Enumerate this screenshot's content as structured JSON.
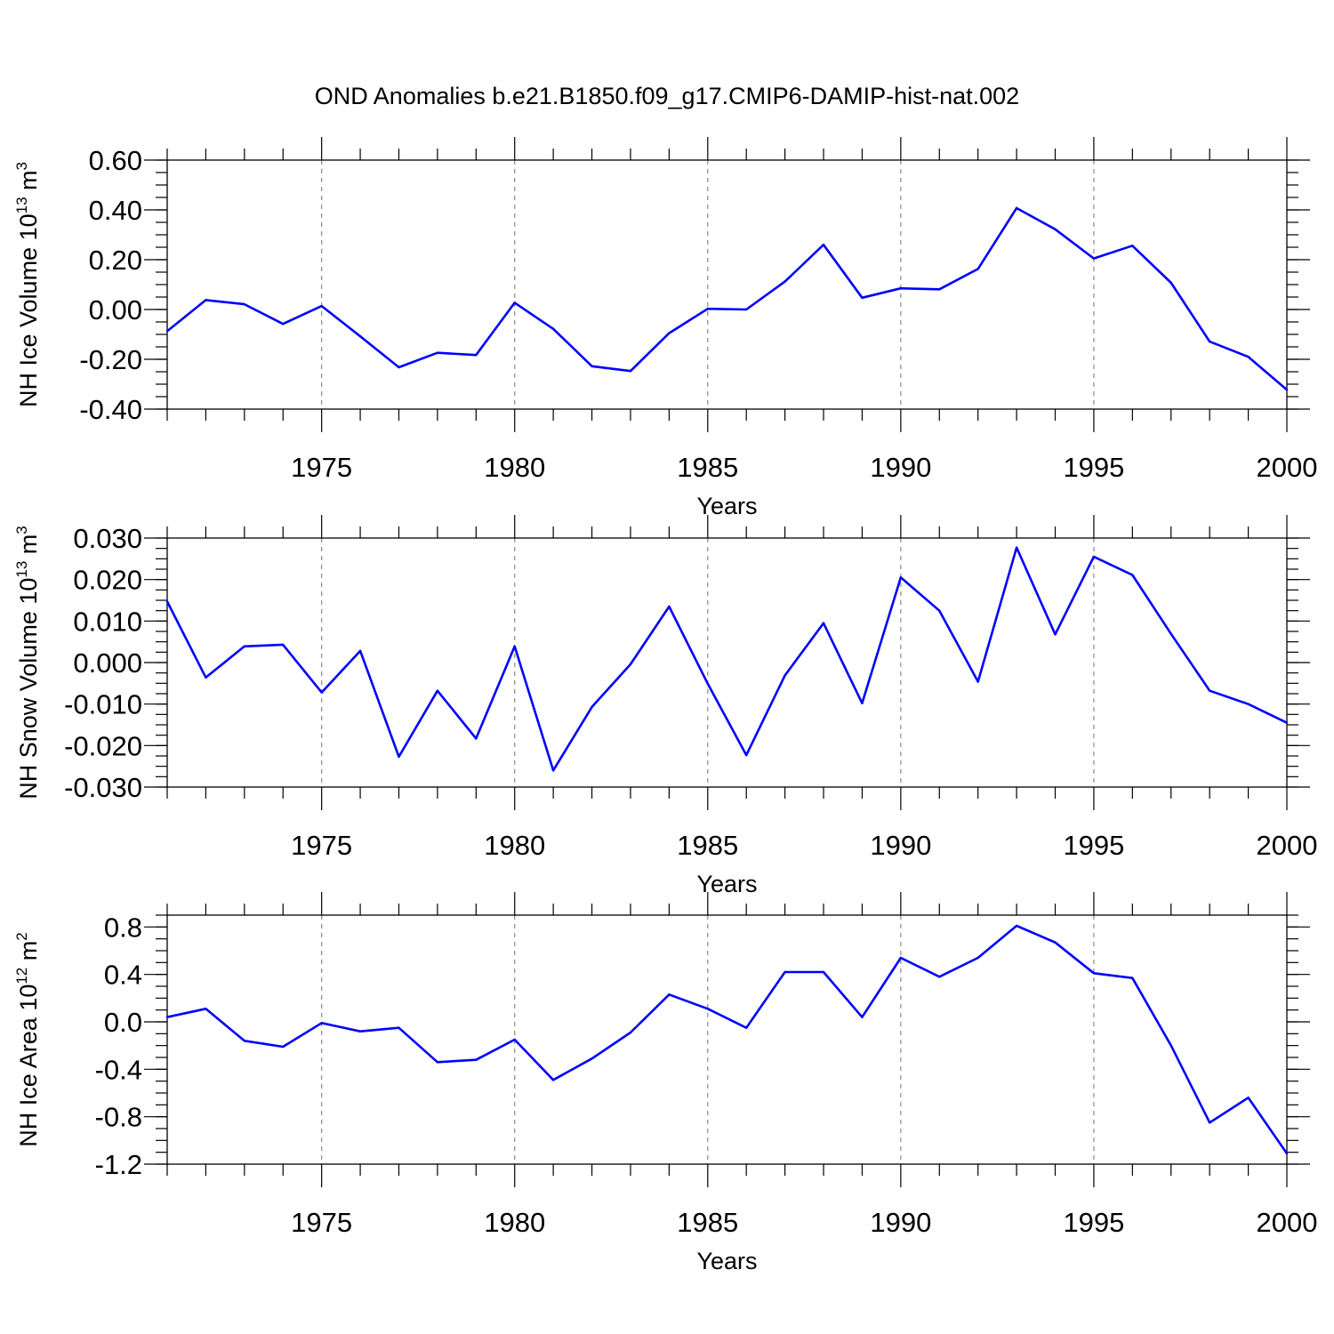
{
  "title": "OND Anomalies b.e21.B1850.f09_g17.CMIP6-DAMIP-hist-nat.002",
  "chart_data": [
    {
      "type": "line",
      "name": "ice-volume",
      "ylabel": {
        "base": "NH Ice Volume 10",
        "exp": "13",
        "unit": " m",
        "unit_exp": "3"
      },
      "xlabel": "Years",
      "xlim": [
        1971,
        2000
      ],
      "ylim": [
        -0.4,
        0.6
      ],
      "grid": "vertical dashed at major x ticks",
      "yticks": [
        -0.4,
        -0.2,
        0.0,
        0.2,
        0.4,
        0.6
      ],
      "ytick_labels": [
        "-0.40",
        "-0.20",
        "0.00",
        "0.20",
        "0.40",
        "0.60"
      ],
      "yminor_step": 0.05,
      "xticks": [
        1975,
        1980,
        1985,
        1990,
        1995,
        2000
      ],
      "xtick_labels": [
        "1975",
        "1980",
        "1985",
        "1990",
        "1995",
        "2000"
      ],
      "x": [
        1971,
        1972,
        1973,
        1974,
        1975,
        1976,
        1977,
        1978,
        1979,
        1980,
        1981,
        1982,
        1983,
        1984,
        1985,
        1986,
        1987,
        1988,
        1989,
        1990,
        1991,
        1992,
        1993,
        1994,
        1995,
        1996,
        1997,
        1998,
        1999,
        2000
      ],
      "y": [
        -0.087,
        0.038,
        0.021,
        -0.058,
        0.014,
        -0.108,
        -0.232,
        -0.174,
        -0.183,
        0.027,
        -0.078,
        -0.228,
        -0.247,
        -0.095,
        0.003,
        0.0,
        0.112,
        0.26,
        0.047,
        0.085,
        0.081,
        0.163,
        0.407,
        0.322,
        0.205,
        0.256,
        0.107,
        -0.129,
        -0.19,
        -0.322
      ],
      "color": "#0000ff"
    },
    {
      "type": "line",
      "name": "snow-volume",
      "ylabel": {
        "base": "NH Snow Volume 10",
        "exp": "13",
        "unit": " m",
        "unit_exp": "3"
      },
      "xlabel": "Years",
      "xlim": [
        1971,
        2000
      ],
      "ylim": [
        -0.03,
        0.03
      ],
      "grid": "vertical dashed at major x ticks",
      "yticks": [
        -0.03,
        -0.02,
        -0.01,
        0.0,
        0.01,
        0.02,
        0.03
      ],
      "ytick_labels": [
        "-0.030",
        "-0.020",
        "-0.010",
        "0.000",
        "0.010",
        "0.020",
        "0.030"
      ],
      "yminor_step": 0.0025,
      "xticks": [
        1975,
        1980,
        1985,
        1990,
        1995,
        2000
      ],
      "xtick_labels": [
        "1975",
        "1980",
        "1985",
        "1990",
        "1995",
        "2000"
      ],
      "x": [
        1971,
        1972,
        1973,
        1974,
        1975,
        1976,
        1977,
        1978,
        1979,
        1980,
        1981,
        1982,
        1983,
        1984,
        1985,
        1986,
        1987,
        1988,
        1989,
        1990,
        1991,
        1992,
        1993,
        1994,
        1995,
        1996,
        1997,
        1998,
        1999,
        2000
      ],
      "y": [
        0.0147,
        -0.0036,
        0.0039,
        0.0043,
        -0.0072,
        0.0028,
        -0.0227,
        -0.0068,
        -0.0183,
        0.0039,
        -0.026,
        -0.0107,
        -0.0004,
        0.0135,
        -0.0051,
        -0.0223,
        -0.0031,
        0.0095,
        -0.0098,
        0.0205,
        0.0125,
        -0.0046,
        0.0277,
        0.0068,
        0.0255,
        0.0211,
        0.0069,
        -0.0068,
        -0.01,
        -0.0145
      ],
      "color": "#0000ff"
    },
    {
      "type": "line",
      "name": "ice-area",
      "ylabel": {
        "base": "NH Ice Area 10",
        "exp": "12",
        "unit": " m",
        "unit_exp": "2"
      },
      "xlabel": "Years",
      "xlim": [
        1971,
        2000
      ],
      "ylim": [
        -1.2,
        0.9
      ],
      "grid": "vertical dashed at major x ticks",
      "yticks": [
        -1.2,
        -0.8,
        -0.4,
        0.0,
        0.4,
        0.8
      ],
      "ytick_labels": [
        "-1.2",
        "-0.8",
        "-0.4",
        "0.0",
        "0.4",
        "0.8"
      ],
      "yminor_step": 0.1,
      "xticks": [
        1975,
        1980,
        1985,
        1990,
        1995,
        2000
      ],
      "xtick_labels": [
        "1975",
        "1980",
        "1985",
        "1990",
        "1995",
        "2000"
      ],
      "x": [
        1971,
        1972,
        1973,
        1974,
        1975,
        1976,
        1977,
        1978,
        1979,
        1980,
        1981,
        1982,
        1983,
        1984,
        1985,
        1986,
        1987,
        1988,
        1989,
        1990,
        1991,
        1992,
        1993,
        1994,
        1995,
        1996,
        1997,
        1998,
        1999,
        2000
      ],
      "y": [
        0.04,
        0.11,
        -0.16,
        -0.21,
        -0.01,
        -0.08,
        -0.05,
        -0.34,
        -0.32,
        -0.15,
        -0.49,
        -0.31,
        -0.09,
        0.23,
        0.11,
        -0.05,
        0.42,
        0.42,
        0.04,
        0.54,
        0.38,
        0.54,
        0.81,
        0.67,
        0.41,
        0.37,
        -0.2,
        -0.85,
        -0.64,
        -1.11
      ],
      "color": "#0000ff"
    }
  ]
}
